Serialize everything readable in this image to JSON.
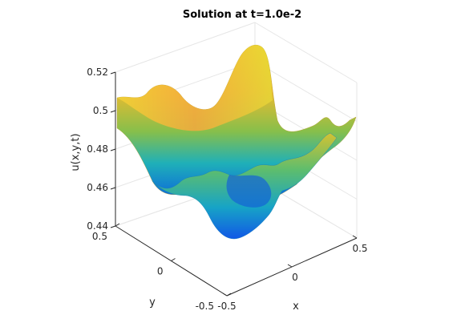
{
  "chart_data": {
    "type": "surface",
    "title": "Solution at t=1.0e-2",
    "xlabel": "x",
    "ylabel": "y",
    "zlabel": "u(x,y,t)",
    "xlim": [
      -0.5,
      0.5
    ],
    "ylim": [
      -0.5,
      0.5
    ],
    "zlim": [
      0.44,
      0.52
    ],
    "x_ticks": [
      "-0.5",
      "0",
      "0.5"
    ],
    "y_ticks": [
      "-0.5",
      "0",
      "0.5"
    ],
    "z_ticks": [
      "0.44",
      "0.46",
      "0.48",
      "0.5",
      "0.52"
    ],
    "view": "3d-isometric",
    "colormap": "parula",
    "grid": true,
    "box": true,
    "legend": "none",
    "z_at_corners": {
      "x_-0.5_y_0.5": 0.507,
      "x_0.5_y_-0.5": 0.507,
      "x_-0.5_y_-0.5": 0.46,
      "x_0.5_y_0.5": 0.47
    },
    "z_max": 0.52,
    "z_min": 0.445
  }
}
